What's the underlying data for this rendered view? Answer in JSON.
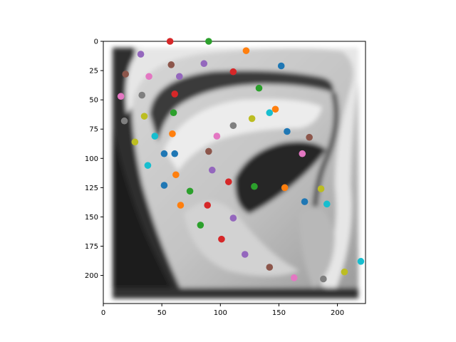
{
  "chart_data": {
    "type": "scatter",
    "title": "",
    "xlabel": "",
    "ylabel": "",
    "xlim": [
      0,
      224
    ],
    "ylim": [
      224,
      0
    ],
    "y_axis_inverted": true,
    "xticks": [
      0,
      50,
      100,
      150,
      200
    ],
    "yticks": [
      0,
      25,
      50,
      75,
      100,
      125,
      150,
      175,
      200
    ],
    "xtick_labels": [
      "0",
      "50",
      "100",
      "150",
      "200"
    ],
    "ytick_labels": [
      "0",
      "25",
      "50",
      "75",
      "100",
      "125",
      "150",
      "175",
      "200"
    ],
    "grid": false,
    "background_image": "grayscale close-up photograph of a human ear",
    "colors": {
      "blue": "#1f77b4",
      "orange": "#ff7f0e",
      "green": "#2ca02c",
      "red": "#d62728",
      "purple": "#9467bd",
      "brown": "#8c564b",
      "pink": "#e377c2",
      "gray": "#7f7f7f",
      "olive": "#bcbd22",
      "cyan": "#17becf"
    },
    "points": [
      {
        "x": 57,
        "y": 0,
        "color": "red"
      },
      {
        "x": 90,
        "y": 0,
        "color": "green"
      },
      {
        "x": 122,
        "y": 8,
        "color": "orange"
      },
      {
        "x": 32,
        "y": 11,
        "color": "purple"
      },
      {
        "x": 58,
        "y": 20,
        "color": "brown"
      },
      {
        "x": 86,
        "y": 19,
        "color": "purple"
      },
      {
        "x": 152,
        "y": 21,
        "color": "blue"
      },
      {
        "x": 19,
        "y": 28,
        "color": "brown"
      },
      {
        "x": 39,
        "y": 30,
        "color": "pink"
      },
      {
        "x": 65,
        "y": 30,
        "color": "purple"
      },
      {
        "x": 111,
        "y": 26,
        "color": "red"
      },
      {
        "x": 133,
        "y": 40,
        "color": "green"
      },
      {
        "x": 15,
        "y": 47,
        "color": "pink"
      },
      {
        "x": 33,
        "y": 46,
        "color": "gray"
      },
      {
        "x": 61,
        "y": 45,
        "color": "red"
      },
      {
        "x": 60,
        "y": 61,
        "color": "green"
      },
      {
        "x": 142,
        "y": 61,
        "color": "cyan"
      },
      {
        "x": 147,
        "y": 58,
        "color": "orange"
      },
      {
        "x": 35,
        "y": 64,
        "color": "olive"
      },
      {
        "x": 127,
        "y": 66,
        "color": "olive"
      },
      {
        "x": 18,
        "y": 68,
        "color": "gray"
      },
      {
        "x": 111,
        "y": 72,
        "color": "gray"
      },
      {
        "x": 157,
        "y": 77,
        "color": "blue"
      },
      {
        "x": 176,
        "y": 82,
        "color": "brown"
      },
      {
        "x": 59,
        "y": 79,
        "color": "orange"
      },
      {
        "x": 44,
        "y": 81,
        "color": "cyan"
      },
      {
        "x": 97,
        "y": 81,
        "color": "pink"
      },
      {
        "x": 27,
        "y": 86,
        "color": "olive"
      },
      {
        "x": 52,
        "y": 96,
        "color": "blue"
      },
      {
        "x": 61,
        "y": 96,
        "color": "blue"
      },
      {
        "x": 90,
        "y": 94,
        "color": "brown"
      },
      {
        "x": 170,
        "y": 96,
        "color": "pink"
      },
      {
        "x": 38,
        "y": 106,
        "color": "cyan"
      },
      {
        "x": 93,
        "y": 110,
        "color": "purple"
      },
      {
        "x": 62,
        "y": 114,
        "color": "orange"
      },
      {
        "x": 107,
        "y": 120,
        "color": "red"
      },
      {
        "x": 52,
        "y": 123,
        "color": "blue"
      },
      {
        "x": 129,
        "y": 124,
        "color": "green"
      },
      {
        "x": 155,
        "y": 125,
        "color": "orange"
      },
      {
        "x": 186,
        "y": 126,
        "color": "olive"
      },
      {
        "x": 74,
        "y": 128,
        "color": "green"
      },
      {
        "x": 172,
        "y": 137,
        "color": "blue"
      },
      {
        "x": 191,
        "y": 139,
        "color": "cyan"
      },
      {
        "x": 66,
        "y": 140,
        "color": "orange"
      },
      {
        "x": 89,
        "y": 140,
        "color": "red"
      },
      {
        "x": 111,
        "y": 151,
        "color": "purple"
      },
      {
        "x": 83,
        "y": 157,
        "color": "green"
      },
      {
        "x": 101,
        "y": 169,
        "color": "red"
      },
      {
        "x": 121,
        "y": 182,
        "color": "purple"
      },
      {
        "x": 220,
        "y": 188,
        "color": "cyan"
      },
      {
        "x": 142,
        "y": 193,
        "color": "brown"
      },
      {
        "x": 206,
        "y": 197,
        "color": "olive"
      },
      {
        "x": 163,
        "y": 202,
        "color": "pink"
      },
      {
        "x": 188,
        "y": 203,
        "color": "gray"
      }
    ]
  }
}
